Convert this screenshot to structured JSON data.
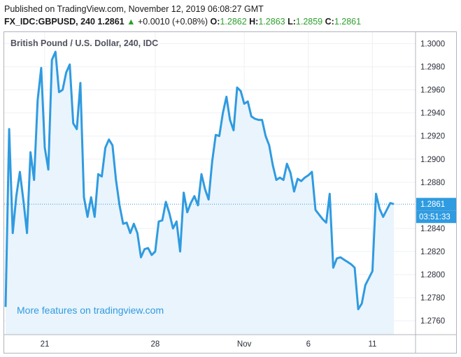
{
  "header": {
    "published": "Published on TradingView.com, November 12, 2019 06:08:27 GMT",
    "symbol": "FX_IDC:GBPUSD,",
    "resolution": "240",
    "last": "1.2861",
    "change_arrow": "▲",
    "change": "+0.0010 (+0.08%)",
    "open_label": "O:",
    "open": "1.2862",
    "high_label": "H:",
    "high": "1.2863",
    "low_label": "L:",
    "low": "1.2859",
    "close_label": "C:",
    "close": "1.2861"
  },
  "pane": {
    "title": "British Pound / U.S. Dollar, 240, IDC",
    "promo": "More features on tradingview.com",
    "current_price": "1.2861",
    "countdown": "03:51:33"
  },
  "colors": {
    "line": "#2f9be0",
    "area": "#eaf4fd",
    "grid": "#eef0f3",
    "price_tag": "#2f9be0",
    "up": "#2ca02c"
  },
  "chart_data": {
    "type": "area",
    "title": "British Pound / U.S. Dollar, 240, IDC",
    "xlabel": "",
    "ylabel": "",
    "x_ticks": [
      "21",
      "28",
      "Nov",
      "6",
      "11"
    ],
    "y_ticks": [
      "1.3000",
      "1.2980",
      "1.2960",
      "1.2940",
      "1.2920",
      "1.2900",
      "1.2880",
      "1.2840",
      "1.2820",
      "1.2800",
      "1.2780",
      "1.2760"
    ],
    "ylim": [
      1.2748,
      1.301
    ],
    "grid": true,
    "series": [
      {
        "values": [
          1.2772,
          1.2926,
          1.2836,
          1.2868,
          1.2889,
          1.2864,
          1.2836,
          1.2906,
          1.2882,
          1.2951,
          1.2979,
          1.291,
          1.2891,
          1.2986,
          1.2993,
          1.2958,
          1.296,
          1.2975,
          1.2982,
          1.2931,
          1.2926,
          1.2966,
          1.2867,
          1.285,
          1.2867,
          1.285,
          1.2887,
          1.2885,
          1.291,
          1.2917,
          1.2912,
          1.2882,
          1.286,
          1.2844,
          1.2845,
          1.2836,
          1.2844,
          1.2836,
          1.2815,
          1.2822,
          1.2823,
          1.2817,
          1.282,
          1.2846,
          1.2847,
          1.2863,
          1.2853,
          1.284,
          1.2846,
          1.282,
          1.2871,
          1.2854,
          1.2862,
          1.2868,
          1.286,
          1.2887,
          1.2874,
          1.2865,
          1.2898,
          1.2921,
          1.292,
          1.294,
          1.2954,
          1.2934,
          1.2925,
          1.2962,
          1.2959,
          1.2948,
          1.295,
          1.2937,
          1.2935,
          1.2934,
          1.2934,
          1.292,
          1.2912,
          1.2895,
          1.2882,
          1.2884,
          1.2882,
          1.2896,
          1.2888,
          1.2872,
          1.2883,
          1.2881,
          1.2884,
          1.2886,
          1.2889,
          1.2856,
          1.2852,
          1.2848,
          1.2845,
          1.287,
          1.2806,
          1.2814,
          1.2815,
          1.2813,
          1.2811,
          1.2809,
          1.2806,
          1.277,
          1.2775,
          1.2791,
          1.2797,
          1.2803,
          1.287,
          1.2857,
          1.285,
          1.2856,
          1.2862,
          1.2861
        ]
      }
    ]
  }
}
